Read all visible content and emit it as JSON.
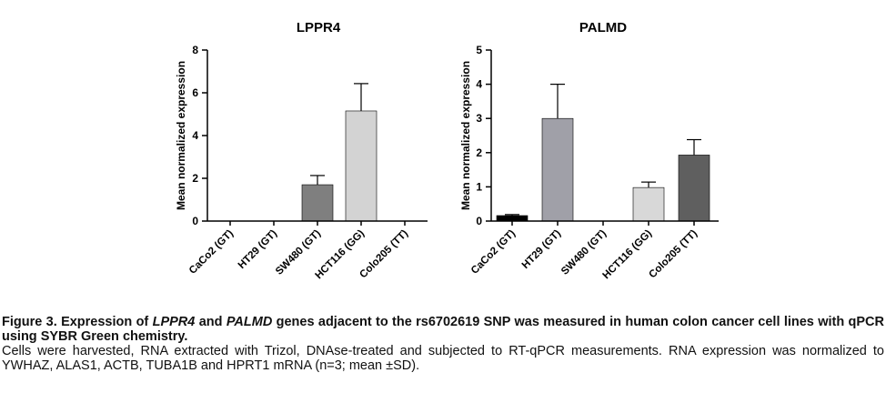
{
  "chart_data": [
    {
      "type": "bar",
      "title": "LPPR4",
      "y_label": "Mean normalized expression",
      "categories": [
        "CaCo2 (GT)",
        "HT29 (GT)",
        "SW480 (GT)",
        "HCT116 (GG)",
        "Colo205 (TT)"
      ],
      "values": [
        0,
        0,
        1.7,
        5.15,
        0
      ],
      "errors": [
        0,
        0,
        0.43,
        1.28,
        0
      ],
      "colors": [
        "#000000",
        "#a0a0a8",
        "#7f7f7f",
        "#d3d3d3",
        "#5f5f5f"
      ],
      "ylim": [
        0,
        8
      ],
      "yticks": [
        0,
        2,
        4,
        6,
        8
      ]
    },
    {
      "type": "bar",
      "title": "PALMD",
      "y_label": "Mean normalized expression",
      "categories": [
        "CaCo2 (GT)",
        "HT29 (GT)",
        "SW480 (GT)",
        "HCT116 (GG)",
        "Colo205 (TT)"
      ],
      "values": [
        0.16,
        3.0,
        0,
        0.98,
        1.93
      ],
      "errors": [
        0.03,
        1.0,
        0,
        0.16,
        0.45
      ],
      "colors": [
        "#000000",
        "#a0a0a8",
        "#7f7f7f",
        "#d8d8d8",
        "#5f5f5f"
      ],
      "ylim": [
        0,
        5
      ],
      "yticks": [
        0,
        1,
        2,
        3,
        4,
        5
      ]
    }
  ],
  "caption": {
    "title_parts": [
      "Figure 3. Expression of ",
      "LPPR4",
      " and ",
      "PALMD",
      " genes adjacent to the rs6702619 SNP was measured in human colon cancer cell lines with qPCR using SYBR Green chemistry."
    ],
    "body": "Cells were harvested, RNA extracted with Trizol, DNAse-treated and subjected to RT-qPCR measurements. RNA expression was normalized to YWHAZ, ALAS1, ACTB, TUBA1B and HPRT1 mRNA (n=3; mean ±SD)."
  }
}
